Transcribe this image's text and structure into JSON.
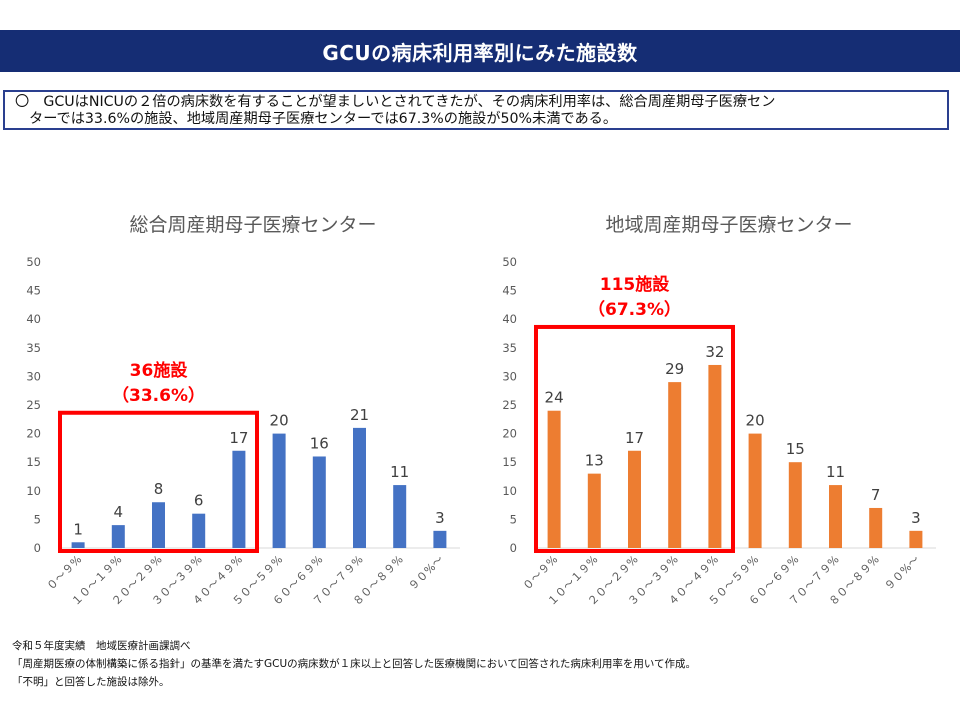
{
  "header": {
    "title": "GCUの病床利用率別にみた施設数"
  },
  "summary": {
    "line1": "〇　GCUはNICUの２倍の病床数を有することが望ましいとされてきたが、その病床利用率は、総合周産期母子医療セン",
    "line2": "ターでは33.6%の施設、地域周産期母子医療センターでは67.3%の施設が50%未満である。"
  },
  "chart_data": [
    {
      "type": "bar",
      "title": "総合周産期母子医療センター",
      "categories": [
        "０～９%",
        "１０～１９%",
        "２０～２９%",
        "３０～３９%",
        "４０～４９%",
        "５０～５９%",
        "６０～６９%",
        "７０～７９%",
        "８０～８９%",
        "９０%～"
      ],
      "values": [
        1,
        4,
        8,
        6,
        17,
        20,
        16,
        21,
        11,
        3
      ],
      "ylim": [
        0,
        50
      ],
      "yticks": [
        0,
        5,
        10,
        15,
        20,
        25,
        30,
        35,
        40,
        45,
        50
      ],
      "color": "#4472c4",
      "highlight": {
        "from": 0,
        "to": 4,
        "label_count": "36施設",
        "label_pct": "（33.6%）",
        "color": "#ff0000"
      },
      "xlabel": "",
      "ylabel": ""
    },
    {
      "type": "bar",
      "title": "地域周産期母子医療センター",
      "categories": [
        "０～９%",
        "１０～１９%",
        "２０～２９%",
        "３０～３９%",
        "４０～４９%",
        "５０～５９%",
        "６０～６９%",
        "７０～７９%",
        "８０～８９%",
        "９０%～"
      ],
      "values": [
        24,
        13,
        17,
        29,
        32,
        20,
        15,
        11,
        7,
        3
      ],
      "ylim": [
        0,
        50
      ],
      "yticks": [
        0,
        5,
        10,
        15,
        20,
        25,
        30,
        35,
        40,
        45,
        50
      ],
      "color": "#ed7d31",
      "highlight": {
        "from": 0,
        "to": 4,
        "label_count": "115施設",
        "label_pct": "（67.3%）",
        "color": "#ff0000"
      },
      "xlabel": "",
      "ylabel": ""
    }
  ],
  "footnotes": {
    "line1": "令和５年度実績　地域医療計画課調べ",
    "line2": "「周産期医療の体制構築に係る指針」の基準を満たすGCUの病床数が１床以上と回答した医療機関において回答された病床利用率を用いて作成。",
    "line3": "「不明」と回答した施設は除外。"
  }
}
